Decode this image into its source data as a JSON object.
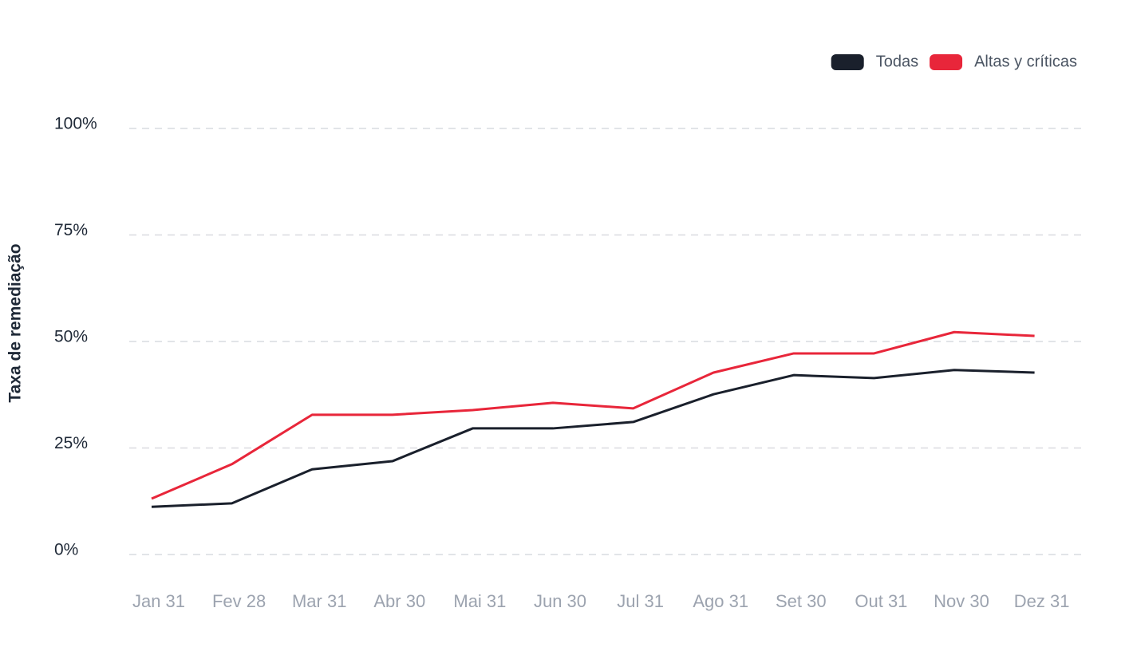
{
  "chart_data": {
    "type": "line",
    "y_label": "Taxa de remediação",
    "categories": [
      "Jan 31",
      "Fev 28",
      "Mar 31",
      "Abr 30",
      "Mai 31",
      "Jun 30",
      "Jul 31",
      "Ago 31",
      "Set 30",
      "Out 31",
      "Nov 30",
      "Dez 31"
    ],
    "series": [
      {
        "name": "Todas",
        "color": "#1a202c",
        "values": [
          11.2,
          12.0,
          20.0,
          21.9,
          29.6,
          29.6,
          31.1,
          37.6,
          42.1,
          41.4,
          43.3,
          42.7
        ]
      },
      {
        "name": "Altas y críticas",
        "color": "#e8263a",
        "values": [
          13.1,
          21.2,
          32.8,
          32.8,
          33.9,
          35.6,
          34.3,
          42.7,
          47.2,
          47.2,
          52.2,
          51.3
        ]
      }
    ],
    "ylim": [
      0,
      100
    ],
    "yticks": [
      {
        "value": 0,
        "label": "0%"
      },
      {
        "value": 25,
        "label": "25%"
      },
      {
        "value": 50,
        "label": "50%"
      },
      {
        "value": 75,
        "label": "75%"
      },
      {
        "value": 100,
        "label": "100%"
      }
    ],
    "grid": true,
    "legend": "top-right"
  }
}
